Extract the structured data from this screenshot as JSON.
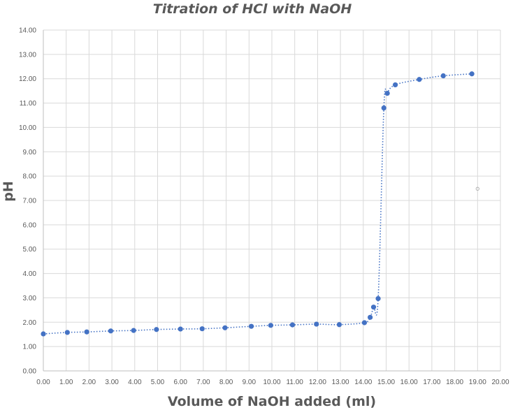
{
  "chart_data": {
    "type": "scatter",
    "title": "Titration of HCl with NaOH",
    "xlabel": "Volume of NaOH added (ml)",
    "ylabel": "pH",
    "xlim": [
      0,
      20
    ],
    "ylim": [
      0,
      14
    ],
    "x_ticks": [
      "0.00",
      "1.00",
      "2.00",
      "3.00",
      "4.00",
      "5.00",
      "6.00",
      "7.00",
      "8.00",
      "9.00",
      "10.00",
      "11.00",
      "12.00",
      "13.00",
      "14.00",
      "15.00",
      "16.00",
      "17.00",
      "18.00",
      "19.00",
      "20.00"
    ],
    "y_ticks": [
      "0.00",
      "1.00",
      "2.00",
      "3.00",
      "4.00",
      "5.00",
      "6.00",
      "7.00",
      "8.00",
      "9.00",
      "10.00",
      "11.00",
      "12.00",
      "13.00",
      "14.00"
    ],
    "grid": true,
    "legend": "none",
    "series": [
      {
        "color": "#4472c4",
        "marker": "filled-circle",
        "line": "dotted-smooth",
        "points": [
          {
            "x": 0.0,
            "y": 1.52
          },
          {
            "x": 1.05,
            "y": 1.58
          },
          {
            "x": 1.9,
            "y": 1.6
          },
          {
            "x": 2.95,
            "y": 1.64
          },
          {
            "x": 3.95,
            "y": 1.66
          },
          {
            "x": 4.95,
            "y": 1.7
          },
          {
            "x": 6.0,
            "y": 1.72
          },
          {
            "x": 6.95,
            "y": 1.73
          },
          {
            "x": 7.95,
            "y": 1.77
          },
          {
            "x": 9.1,
            "y": 1.83
          },
          {
            "x": 9.95,
            "y": 1.87
          },
          {
            "x": 10.9,
            "y": 1.89
          },
          {
            "x": 11.95,
            "y": 1.92
          },
          {
            "x": 12.95,
            "y": 1.9
          },
          {
            "x": 14.05,
            "y": 1.98
          },
          {
            "x": 14.3,
            "y": 2.2
          },
          {
            "x": 14.45,
            "y": 2.62
          },
          {
            "x": 14.65,
            "y": 2.97
          },
          {
            "x": 14.9,
            "y": 10.8
          },
          {
            "x": 15.05,
            "y": 11.4
          },
          {
            "x": 15.4,
            "y": 11.75
          },
          {
            "x": 16.45,
            "y": 11.97
          },
          {
            "x": 17.5,
            "y": 12.12
          },
          {
            "x": 18.75,
            "y": 12.2
          }
        ]
      },
      {
        "color": "#a6a6a6",
        "marker": "hollow-circle",
        "line": "none",
        "points": [
          {
            "x": 19.0,
            "y": 7.48
          }
        ]
      }
    ]
  }
}
